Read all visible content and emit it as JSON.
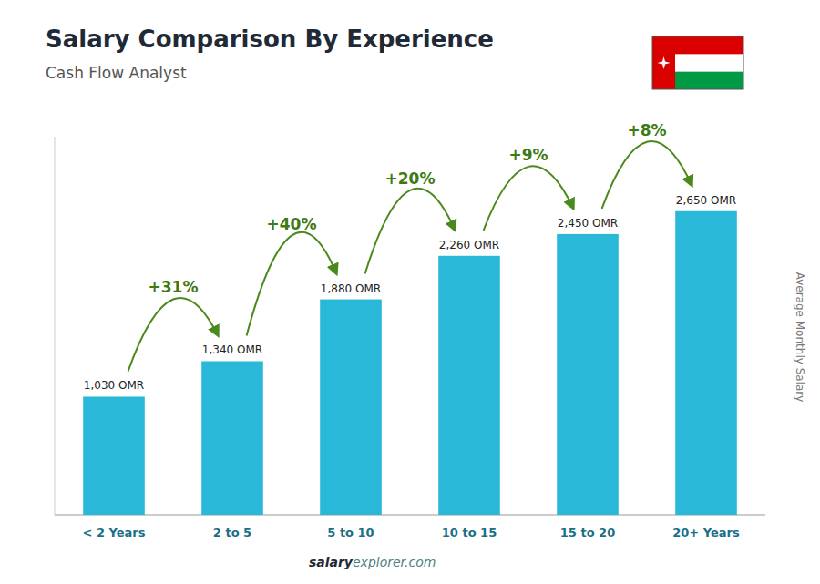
{
  "chart_data": {
    "type": "bar",
    "title": "Salary Comparison By Experience",
    "subtitle": "Cash Flow Analyst",
    "y_label": "Average Monthly Salary",
    "categories": [
      "< 2 Years",
      "2 to 5",
      "5 to 10",
      "10 to 15",
      "15 to 20",
      "20+ Years"
    ],
    "values": [
      1030,
      1340,
      1880,
      2260,
      2450,
      2650
    ],
    "value_labels": [
      "1,030 OMR",
      "1,340 OMR",
      "1,880 OMR",
      "2,260 OMR",
      "2,450 OMR",
      "2,650 OMR"
    ],
    "data_labels": true,
    "color": "#29b8d8",
    "ylim": [
      0,
      3300
    ],
    "tick_labels": "x",
    "grid": false,
    "annotations": [
      {
        "text": "+31%",
        "categories": [
          "< 2 Years",
          "2 to 5"
        ]
      },
      {
        "text": "+40%",
        "categories": [
          "2 to 5",
          "5 to 10"
        ]
      },
      {
        "text": "+20%",
        "categories": [
          "5 to 10",
          "10 to 15"
        ]
      },
      {
        "text": "+9%",
        "categories": [
          "10 to 15",
          "15 to 20"
        ]
      },
      {
        "text": "+8%",
        "categories": [
          "15 to 20",
          "20+ Years"
        ]
      }
    ],
    "source": [
      "salary",
      "explorer.com"
    ]
  }
}
